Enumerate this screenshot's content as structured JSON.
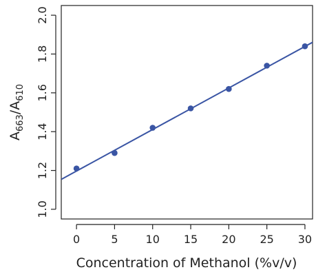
{
  "chart_data": {
    "type": "scatter",
    "title": "",
    "xlabel": "Concentration of Methanol (%v/v)",
    "ylabel": {
      "main_a": "A",
      "sub_a": "663",
      "slash": "/",
      "main_b": "A",
      "sub_b": "610"
    },
    "xlim": [
      -2,
      31
    ],
    "ylim": [
      0.95,
      2.05
    ],
    "x_ticks": [
      "0",
      "5",
      "10",
      "15",
      "20",
      "25",
      "30"
    ],
    "y_ticks": [
      "1.0",
      "1.2",
      "1.4",
      "1.6",
      "1.8",
      "2.0"
    ],
    "grid": false,
    "legend": "none",
    "series": [
      {
        "x": [
          0,
          5,
          10,
          15,
          20,
          25,
          30
        ],
        "y": [
          1.21,
          1.29,
          1.42,
          1.52,
          1.62,
          1.74,
          1.84
        ],
        "color": "#3a55a4"
      }
    ],
    "fit_line": {
      "intercept": 1.197,
      "slope": 0.0214,
      "color": "#3a55a4"
    }
  }
}
